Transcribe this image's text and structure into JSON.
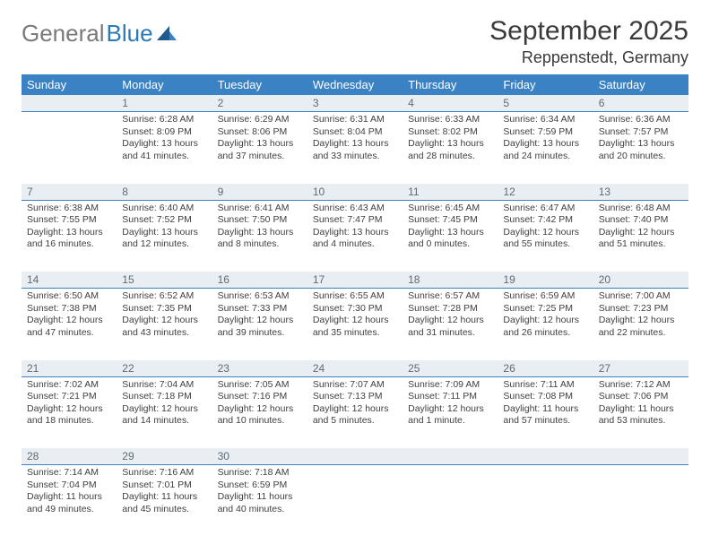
{
  "brand": {
    "gray": "General",
    "blue": "Blue"
  },
  "title": "September 2025",
  "location": "Reppenstedt, Germany",
  "colors": {
    "header_bg": "#3b82c4",
    "header_fg": "#ffffff",
    "daynum_bg": "#e9eef2",
    "daynum_fg": "#5f6b74",
    "rule": "#3b82c4",
    "text": "#3f3f3f",
    "logo_gray": "#7a7a7a",
    "logo_blue": "#2a7ab8"
  },
  "dow": [
    "Sunday",
    "Monday",
    "Tuesday",
    "Wednesday",
    "Thursday",
    "Friday",
    "Saturday"
  ],
  "weeks": [
    {
      "nums": [
        "",
        "1",
        "2",
        "3",
        "4",
        "5",
        "6"
      ],
      "cells": [
        null,
        {
          "sr": "Sunrise: 6:28 AM",
          "ss": "Sunset: 8:09 PM",
          "dl1": "Daylight: 13 hours",
          "dl2": "and 41 minutes."
        },
        {
          "sr": "Sunrise: 6:29 AM",
          "ss": "Sunset: 8:06 PM",
          "dl1": "Daylight: 13 hours",
          "dl2": "and 37 minutes."
        },
        {
          "sr": "Sunrise: 6:31 AM",
          "ss": "Sunset: 8:04 PM",
          "dl1": "Daylight: 13 hours",
          "dl2": "and 33 minutes."
        },
        {
          "sr": "Sunrise: 6:33 AM",
          "ss": "Sunset: 8:02 PM",
          "dl1": "Daylight: 13 hours",
          "dl2": "and 28 minutes."
        },
        {
          "sr": "Sunrise: 6:34 AM",
          "ss": "Sunset: 7:59 PM",
          "dl1": "Daylight: 13 hours",
          "dl2": "and 24 minutes."
        },
        {
          "sr": "Sunrise: 6:36 AM",
          "ss": "Sunset: 7:57 PM",
          "dl1": "Daylight: 13 hours",
          "dl2": "and 20 minutes."
        }
      ]
    },
    {
      "nums": [
        "7",
        "8",
        "9",
        "10",
        "11",
        "12",
        "13"
      ],
      "cells": [
        {
          "sr": "Sunrise: 6:38 AM",
          "ss": "Sunset: 7:55 PM",
          "dl1": "Daylight: 13 hours",
          "dl2": "and 16 minutes."
        },
        {
          "sr": "Sunrise: 6:40 AM",
          "ss": "Sunset: 7:52 PM",
          "dl1": "Daylight: 13 hours",
          "dl2": "and 12 minutes."
        },
        {
          "sr": "Sunrise: 6:41 AM",
          "ss": "Sunset: 7:50 PM",
          "dl1": "Daylight: 13 hours",
          "dl2": "and 8 minutes."
        },
        {
          "sr": "Sunrise: 6:43 AM",
          "ss": "Sunset: 7:47 PM",
          "dl1": "Daylight: 13 hours",
          "dl2": "and 4 minutes."
        },
        {
          "sr": "Sunrise: 6:45 AM",
          "ss": "Sunset: 7:45 PM",
          "dl1": "Daylight: 13 hours",
          "dl2": "and 0 minutes."
        },
        {
          "sr": "Sunrise: 6:47 AM",
          "ss": "Sunset: 7:42 PM",
          "dl1": "Daylight: 12 hours",
          "dl2": "and 55 minutes."
        },
        {
          "sr": "Sunrise: 6:48 AM",
          "ss": "Sunset: 7:40 PM",
          "dl1": "Daylight: 12 hours",
          "dl2": "and 51 minutes."
        }
      ]
    },
    {
      "nums": [
        "14",
        "15",
        "16",
        "17",
        "18",
        "19",
        "20"
      ],
      "cells": [
        {
          "sr": "Sunrise: 6:50 AM",
          "ss": "Sunset: 7:38 PM",
          "dl1": "Daylight: 12 hours",
          "dl2": "and 47 minutes."
        },
        {
          "sr": "Sunrise: 6:52 AM",
          "ss": "Sunset: 7:35 PM",
          "dl1": "Daylight: 12 hours",
          "dl2": "and 43 minutes."
        },
        {
          "sr": "Sunrise: 6:53 AM",
          "ss": "Sunset: 7:33 PM",
          "dl1": "Daylight: 12 hours",
          "dl2": "and 39 minutes."
        },
        {
          "sr": "Sunrise: 6:55 AM",
          "ss": "Sunset: 7:30 PM",
          "dl1": "Daylight: 12 hours",
          "dl2": "and 35 minutes."
        },
        {
          "sr": "Sunrise: 6:57 AM",
          "ss": "Sunset: 7:28 PM",
          "dl1": "Daylight: 12 hours",
          "dl2": "and 31 minutes."
        },
        {
          "sr": "Sunrise: 6:59 AM",
          "ss": "Sunset: 7:25 PM",
          "dl1": "Daylight: 12 hours",
          "dl2": "and 26 minutes."
        },
        {
          "sr": "Sunrise: 7:00 AM",
          "ss": "Sunset: 7:23 PM",
          "dl1": "Daylight: 12 hours",
          "dl2": "and 22 minutes."
        }
      ]
    },
    {
      "nums": [
        "21",
        "22",
        "23",
        "24",
        "25",
        "26",
        "27"
      ],
      "cells": [
        {
          "sr": "Sunrise: 7:02 AM",
          "ss": "Sunset: 7:21 PM",
          "dl1": "Daylight: 12 hours",
          "dl2": "and 18 minutes."
        },
        {
          "sr": "Sunrise: 7:04 AM",
          "ss": "Sunset: 7:18 PM",
          "dl1": "Daylight: 12 hours",
          "dl2": "and 14 minutes."
        },
        {
          "sr": "Sunrise: 7:05 AM",
          "ss": "Sunset: 7:16 PM",
          "dl1": "Daylight: 12 hours",
          "dl2": "and 10 minutes."
        },
        {
          "sr": "Sunrise: 7:07 AM",
          "ss": "Sunset: 7:13 PM",
          "dl1": "Daylight: 12 hours",
          "dl2": "and 5 minutes."
        },
        {
          "sr": "Sunrise: 7:09 AM",
          "ss": "Sunset: 7:11 PM",
          "dl1": "Daylight: 12 hours",
          "dl2": "and 1 minute."
        },
        {
          "sr": "Sunrise: 7:11 AM",
          "ss": "Sunset: 7:08 PM",
          "dl1": "Daylight: 11 hours",
          "dl2": "and 57 minutes."
        },
        {
          "sr": "Sunrise: 7:12 AM",
          "ss": "Sunset: 7:06 PM",
          "dl1": "Daylight: 11 hours",
          "dl2": "and 53 minutes."
        }
      ]
    },
    {
      "nums": [
        "28",
        "29",
        "30",
        "",
        "",
        "",
        ""
      ],
      "cells": [
        {
          "sr": "Sunrise: 7:14 AM",
          "ss": "Sunset: 7:04 PM",
          "dl1": "Daylight: 11 hours",
          "dl2": "and 49 minutes."
        },
        {
          "sr": "Sunrise: 7:16 AM",
          "ss": "Sunset: 7:01 PM",
          "dl1": "Daylight: 11 hours",
          "dl2": "and 45 minutes."
        },
        {
          "sr": "Sunrise: 7:18 AM",
          "ss": "Sunset: 6:59 PM",
          "dl1": "Daylight: 11 hours",
          "dl2": "and 40 minutes."
        },
        null,
        null,
        null,
        null
      ]
    }
  ]
}
